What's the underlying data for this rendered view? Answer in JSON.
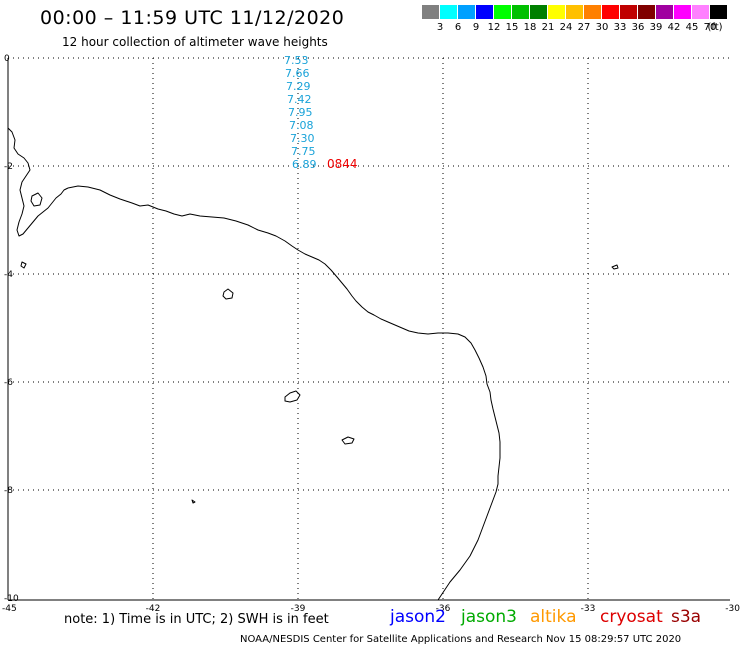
{
  "header": {
    "title": "00:00 – 11:59 UTC 11/12/2020",
    "subtitle": "12 hour collection of altimeter wave heights"
  },
  "legend": {
    "colors": [
      "#808080",
      "#00ffff",
      "#00a0ff",
      "#0000ff",
      "#00ff00",
      "#00c000",
      "#008000",
      "#ffff00",
      "#ffc000",
      "#ff8000",
      "#ff0000",
      "#c00000",
      "#800000",
      "#a000a0",
      "#ff00ff",
      "#ff80ff",
      "#000000"
    ],
    "ticks": [
      "3",
      "6",
      "9",
      "12",
      "15",
      "18",
      "21",
      "24",
      "27",
      "30",
      "33",
      "36",
      "39",
      "42",
      "45",
      "70",
      "(ft)"
    ]
  },
  "axes": {
    "x_ticks": [
      "-45",
      "-42",
      "-39",
      "-36",
      "-33",
      "-30"
    ],
    "y_ticks": [
      "0",
      "-2",
      "-4",
      "-6",
      "-8",
      "-10"
    ]
  },
  "wave_heights": {
    "values": [
      "7.53",
      "7.66",
      "7.29",
      "7.42",
      "7.95",
      "7.08",
      "7.30",
      "7.75",
      "6.89"
    ],
    "time_label": "0844"
  },
  "note": "note:  1) Time is in UTC;  2) SWH is in feet",
  "satellites": [
    {
      "name": "jason2",
      "color": "#0000ff"
    },
    {
      "name": "jason3",
      "color": "#00aa00"
    },
    {
      "name": "altika",
      "color": "#ff9900"
    },
    {
      "name": "cryosat",
      "color": "#dd0000"
    },
    {
      "name": "s3a",
      "color": "#990000"
    }
  ],
  "footer": "NOAA/NESDIS Center for Satellite Applications and Research     Nov 15 08:29:57 UTC 2020"
}
